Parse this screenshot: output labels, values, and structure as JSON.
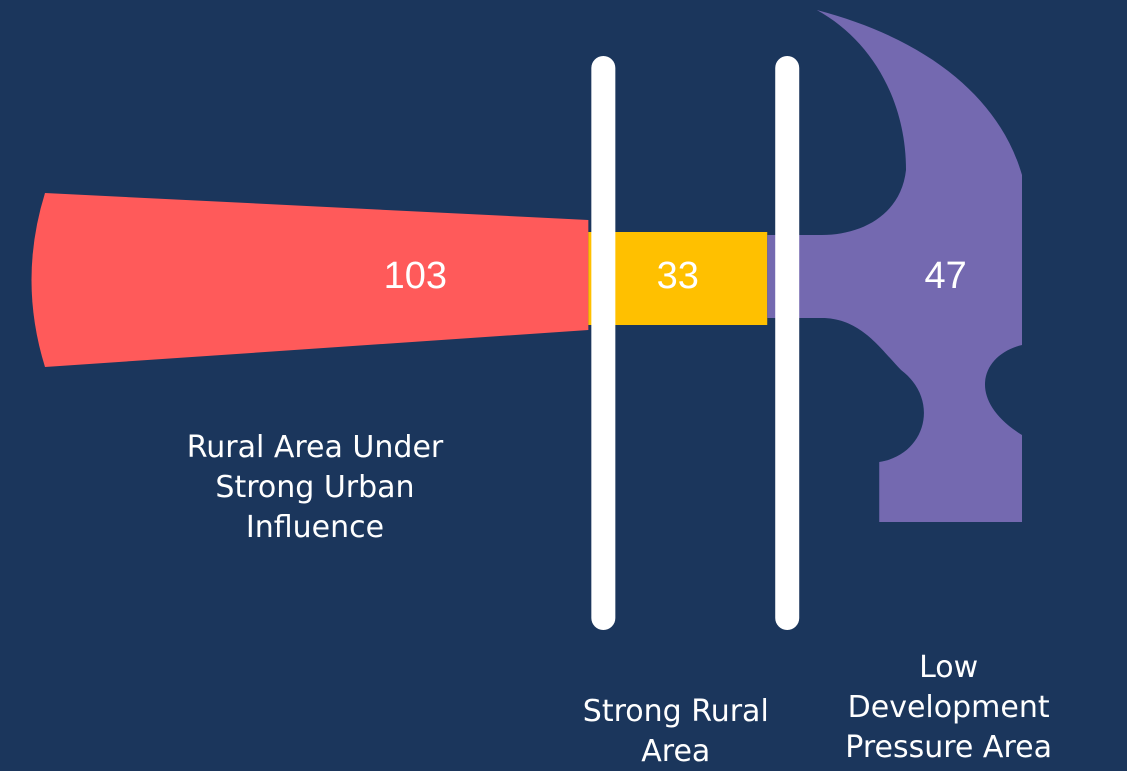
{
  "chart_data": {
    "type": "hammer",
    "categories": [
      "Rural Area Under Strong Urban Influence",
      "Strong Rural Area",
      "Low Development Pressure Area"
    ],
    "values": [
      103,
      33,
      47
    ],
    "colors": [
      "#ff5a5a",
      "#ffc000",
      "#7469b0"
    ]
  }
}
